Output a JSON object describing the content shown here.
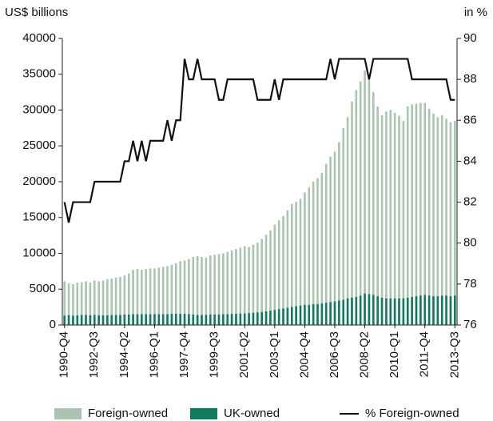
{
  "chart_data": {
    "type": "bar_line",
    "ylabel": "US$ billions",
    "y2label": "in %",
    "categories": [
      "1990-Q4",
      null,
      null,
      null,
      null,
      null,
      null,
      "1992-Q3",
      null,
      null,
      null,
      null,
      null,
      null,
      "1994-Q2",
      null,
      null,
      null,
      null,
      null,
      null,
      "1996-Q1",
      null,
      null,
      null,
      null,
      null,
      null,
      "1997-Q4",
      null,
      null,
      null,
      null,
      null,
      null,
      "1999-Q3",
      null,
      null,
      null,
      null,
      null,
      null,
      "2001-Q2",
      null,
      null,
      null,
      null,
      null,
      null,
      "2003-Q1",
      null,
      null,
      null,
      null,
      null,
      null,
      "2004-Q4",
      null,
      null,
      null,
      null,
      null,
      null,
      "2006-Q3",
      null,
      null,
      null,
      null,
      null,
      null,
      "2008-Q2",
      null,
      null,
      null,
      null,
      null,
      null,
      "2010-Q1",
      null,
      null,
      null,
      null,
      null,
      null,
      "2011-Q4",
      null,
      null,
      null,
      null,
      null,
      null,
      "2013-Q3"
    ],
    "series": [
      {
        "name": "Foreign-owned",
        "color": "#a9c5b1",
        "kind": "bar",
        "values": [
          6100,
          5800,
          5700,
          5900,
          6000,
          6100,
          5900,
          6200,
          6100,
          6200,
          6400,
          6500,
          6600,
          6700,
          6900,
          7200,
          7700,
          7800,
          7700,
          7800,
          7900,
          7900,
          8000,
          8100,
          8200,
          8400,
          8600,
          8900,
          9000,
          9200,
          9500,
          9600,
          9500,
          9400,
          9700,
          9800,
          9900,
          10000,
          10200,
          10400,
          10600,
          10800,
          11000,
          10900,
          11200,
          11500,
          12000,
          12600,
          13200,
          14000,
          14600,
          15200,
          16000,
          16900,
          17200,
          17600,
          18500,
          19200,
          20000,
          20500,
          21200,
          22500,
          23500,
          24200,
          25500,
          27500,
          29000,
          31200,
          32800,
          34000,
          35500,
          34800,
          32500,
          30500,
          29300,
          29800,
          30000,
          29600,
          29200,
          28500,
          30500,
          30800,
          30900,
          31000,
          31000,
          30200,
          29500,
          29000,
          29300,
          28800,
          28300,
          28500
        ]
      },
      {
        "name": "UK-owned",
        "color": "#0f7a5c",
        "kind": "bar",
        "values": [
          1300,
          1350,
          1300,
          1350,
          1400,
          1400,
          1350,
          1400,
          1350,
          1350,
          1350,
          1400,
          1400,
          1400,
          1450,
          1450,
          1500,
          1500,
          1500,
          1500,
          1500,
          1500,
          1500,
          1500,
          1500,
          1550,
          1550,
          1550,
          1550,
          1500,
          1450,
          1400,
          1400,
          1400,
          1450,
          1450,
          1450,
          1500,
          1500,
          1550,
          1550,
          1600,
          1600,
          1650,
          1700,
          1750,
          1800,
          1900,
          2000,
          2100,
          2200,
          2300,
          2400,
          2500,
          2600,
          2700,
          2800,
          2800,
          2900,
          2900,
          3000,
          3100,
          3200,
          3300,
          3400,
          3500,
          3700,
          3800,
          3900,
          4100,
          4400,
          4300,
          4200,
          4000,
          3800,
          3700,
          3700,
          3700,
          3700,
          3700,
          3800,
          3900,
          4000,
          4100,
          4200,
          4100,
          4000,
          4000,
          4100,
          4100,
          4000,
          4100
        ]
      },
      {
        "name": "% Foreign-owned",
        "color": "#111111",
        "kind": "line",
        "axis": "y2",
        "values": [
          82,
          81,
          82,
          82,
          82,
          82,
          82,
          83,
          83,
          83,
          83,
          83,
          83,
          83,
          84,
          84,
          85,
          84,
          85,
          84,
          85,
          85,
          85,
          85,
          86,
          85,
          86,
          86,
          89,
          88,
          88,
          89,
          88,
          88,
          88,
          88,
          87,
          87,
          88,
          88,
          88,
          88,
          88,
          88,
          88,
          87,
          87,
          87,
          87,
          88,
          87,
          88,
          88,
          88,
          88,
          88,
          88,
          88,
          88,
          88,
          88,
          88,
          89,
          88,
          89,
          89,
          89,
          89,
          89,
          89,
          89,
          88,
          89,
          89,
          89,
          89,
          89,
          89,
          89,
          89,
          89,
          88,
          88,
          88,
          88,
          88,
          88,
          88,
          88,
          88,
          87,
          87
        ]
      }
    ],
    "ylim": [
      0,
      40000
    ],
    "yticks": [
      0,
      5000,
      10000,
      15000,
      20000,
      25000,
      30000,
      35000,
      40000
    ],
    "y2lim": [
      76,
      90
    ],
    "y2ticks": [
      76,
      78,
      80,
      82,
      84,
      86,
      88,
      90
    ]
  }
}
